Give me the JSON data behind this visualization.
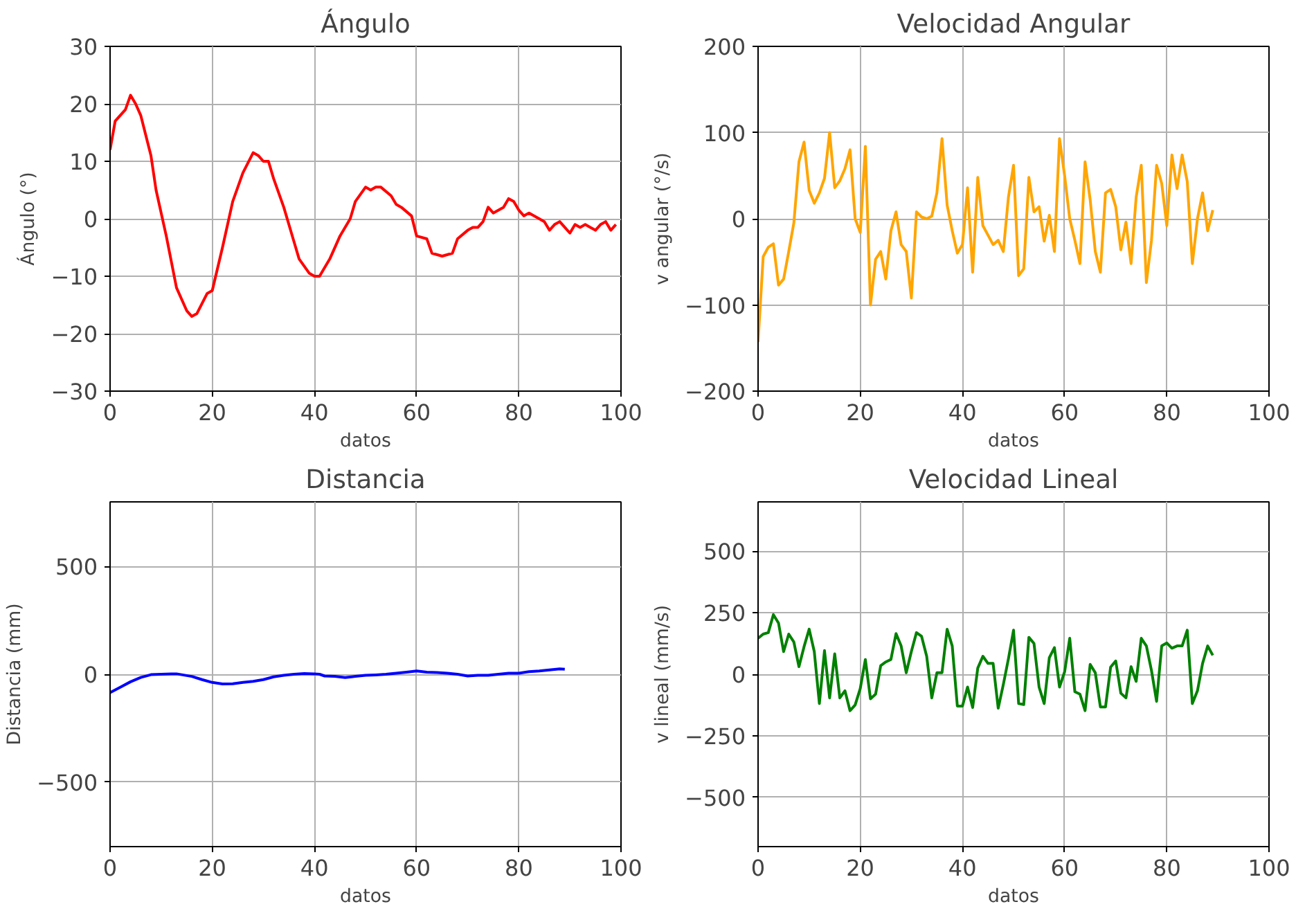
{
  "chart_data": [
    {
      "type": "line",
      "title": "Ángulo",
      "xlabel": "datos",
      "ylabel": "Ángulo (°)",
      "grid": true,
      "xlim": [
        0,
        100
      ],
      "ylim": [
        -30,
        30
      ],
      "xticks": [
        0,
        20,
        40,
        60,
        80,
        100
      ],
      "yticks": [
        {
          "value": -30,
          "label": "−30"
        },
        {
          "value": -20,
          "label": "−20"
        },
        {
          "value": -10,
          "label": "−10"
        },
        0,
        10,
        20,
        30
      ],
      "x": [
        0,
        1,
        3,
        4,
        5,
        6,
        8,
        9,
        11,
        13,
        15,
        16,
        17,
        19,
        20,
        22,
        24,
        26,
        28,
        29,
        30,
        31,
        32,
        34,
        36,
        37,
        39,
        40,
        41,
        43,
        45,
        47,
        48,
        50,
        51,
        52,
        53,
        55,
        56,
        57,
        59,
        60,
        62,
        63,
        65,
        67,
        68,
        70,
        71,
        72,
        73,
        74,
        75,
        77,
        78,
        79,
        80,
        81,
        82,
        84,
        85,
        86,
        87,
        88,
        89,
        90,
        91,
        92,
        93,
        94,
        95,
        96,
        97,
        98,
        99
      ],
      "series": [
        {
          "color": "#ff0000",
          "values": [
            12,
            17,
            19,
            21.5,
            20,
            18,
            11,
            5,
            -3,
            -12,
            -16,
            -17,
            -16.5,
            -13,
            -12.5,
            -5,
            3,
            8,
            11.5,
            11,
            10,
            10,
            7,
            2,
            -4,
            -7,
            -9.5,
            -10,
            -10,
            -7,
            -3,
            0,
            3,
            5.5,
            5,
            5.5,
            5.5,
            4,
            2.5,
            2,
            0.5,
            -3,
            -3.5,
            -6,
            -6.5,
            -6,
            -3.5,
            -2,
            -1.5,
            -1.5,
            -0.5,
            2,
            1,
            2,
            3.5,
            3,
            1.5,
            0.5,
            1,
            0,
            -0.5,
            -2,
            -1,
            -0.5,
            -1.5,
            -2.5,
            -1,
            -1.5,
            -1,
            -1.5,
            -2,
            -1,
            -0.5,
            -2,
            -1
          ]
        }
      ]
    },
    {
      "type": "line",
      "title": "Velocidad Angular",
      "xlabel": "datos",
      "ylabel": "v angular (°/s)",
      "grid": true,
      "xlim": [
        0,
        100
      ],
      "ylim": [
        -200,
        200
      ],
      "xticks": [
        0,
        20,
        40,
        60,
        80,
        100
      ],
      "yticks": [
        {
          "value": -200,
          "label": "−200"
        },
        {
          "value": -100,
          "label": "−100"
        },
        0,
        100,
        200
      ],
      "x": [
        0,
        1,
        2,
        3,
        4,
        5,
        6,
        7,
        8,
        9,
        10,
        11,
        12,
        13,
        14,
        15,
        16,
        17,
        18,
        19,
        20,
        21,
        22,
        23,
        24,
        25,
        26,
        27,
        28,
        29,
        30,
        31,
        32,
        33,
        34,
        35,
        36,
        37,
        38,
        39,
        40,
        41,
        42,
        43,
        44,
        45,
        46,
        47,
        48,
        49,
        50,
        51,
        52,
        53,
        54,
        55,
        56,
        57,
        58,
        59,
        60,
        61,
        62,
        63,
        64,
        65,
        66,
        67,
        68,
        69,
        70,
        71,
        72,
        73,
        74,
        75,
        76,
        77,
        78,
        79,
        80,
        81,
        82,
        83,
        84,
        85,
        86,
        87,
        88,
        89
      ],
      "series": [
        {
          "color": "#ffa500",
          "values": [
            -143,
            -44,
            -33,
            -29,
            -77,
            -70,
            -38,
            -5,
            66,
            89,
            33,
            18,
            30,
            47,
            100,
            36,
            44,
            58,
            80,
            0,
            -16,
            84,
            -100,
            -47,
            -38,
            -70,
            -14,
            8,
            -30,
            -38,
            -92,
            8,
            2,
            0,
            3,
            30,
            93,
            16,
            -14,
            -40,
            -30,
            36,
            -62,
            48,
            -8,
            -19,
            -30,
            -25,
            -38,
            25,
            62,
            -66,
            -58,
            48,
            8,
            14,
            -26,
            4,
            -38,
            93,
            50,
            0,
            -25,
            -52,
            66,
            22,
            -38,
            -62,
            30,
            34,
            14,
            -36,
            -4,
            -52,
            25,
            62,
            -74,
            -25,
            62,
            41,
            -8,
            74,
            35,
            74,
            43,
            -52,
            0,
            30,
            -14,
            10
          ]
        }
      ]
    },
    {
      "type": "line",
      "title": "Distancia",
      "xlabel": "datos",
      "ylabel": "Distancia (mm)",
      "grid": true,
      "xlim": [
        0,
        100
      ],
      "ylim": [
        -800,
        800
      ],
      "xticks": [
        0,
        20,
        40,
        60,
        80,
        100
      ],
      "yticks": [
        {
          "value": -500,
          "label": "−500"
        },
        0,
        500
      ],
      "x": [
        0,
        2,
        4,
        6,
        8,
        10,
        12,
        13,
        14,
        16,
        18,
        20,
        22,
        24,
        26,
        28,
        30,
        32,
        34,
        36,
        38,
        40,
        41,
        42,
        44,
        46,
        48,
        50,
        52,
        54,
        56,
        58,
        60,
        62,
        64,
        66,
        68,
        70,
        72,
        74,
        76,
        78,
        80,
        82,
        84,
        86,
        88,
        89
      ],
      "series": [
        {
          "color": "#0000ff",
          "values": [
            -85,
            -60,
            -35,
            -15,
            -2,
            0,
            2,
            2,
            -2,
            -10,
            -25,
            -38,
            -45,
            -44,
            -38,
            -33,
            -25,
            -12,
            -5,
            0,
            3,
            2,
            0,
            -8,
            -10,
            -15,
            -10,
            -5,
            -3,
            0,
            5,
            10,
            15,
            10,
            8,
            5,
            0,
            -8,
            -5,
            -5,
            0,
            5,
            5,
            12,
            15,
            20,
            25,
            23
          ]
        }
      ]
    },
    {
      "type": "line",
      "title": "Velocidad Lineal",
      "xlabel": "datos",
      "ylabel": "v lineal (mm/s)",
      "grid": true,
      "xlim": [
        0,
        100
      ],
      "ylim": [
        -700,
        700
      ],
      "xticks": [
        0,
        20,
        40,
        60,
        80,
        100
      ],
      "yticks": [
        {
          "value": -500,
          "label": "−500"
        },
        {
          "value": -250,
          "label": "−250"
        },
        0,
        250,
        500
      ],
      "x": [
        0,
        1,
        2,
        3,
        4,
        5,
        6,
        7,
        8,
        9,
        10,
        11,
        12,
        13,
        14,
        15,
        16,
        17,
        18,
        19,
        20,
        21,
        22,
        23,
        24,
        25,
        26,
        27,
        28,
        29,
        30,
        31,
        32,
        33,
        34,
        35,
        36,
        37,
        38,
        39,
        40,
        41,
        42,
        43,
        44,
        45,
        46,
        47,
        48,
        49,
        50,
        51,
        52,
        53,
        54,
        55,
        56,
        57,
        58,
        59,
        60,
        61,
        62,
        63,
        64,
        65,
        66,
        67,
        68,
        69,
        70,
        71,
        72,
        73,
        74,
        75,
        76,
        77,
        78,
        79,
        80,
        81,
        82,
        83,
        84,
        85,
        86,
        87,
        88,
        89
      ],
      "series": [
        {
          "color": "#008000",
          "values": [
            146,
            163,
            169,
            242,
            208,
            92,
            163,
            131,
            31,
            112,
            183,
            92,
            -119,
            96,
            -96,
            83,
            -96,
            -67,
            -148,
            -125,
            -58,
            60,
            -100,
            -81,
            35,
            50,
            60,
            165,
            115,
            6,
            92,
            169,
            154,
            73,
            -96,
            6,
            6,
            183,
            115,
            -129,
            -129,
            -52,
            -135,
            25,
            73,
            44,
            44,
            -138,
            -42,
            63,
            179,
            -119,
            -123,
            150,
            125,
            -52,
            -119,
            67,
            108,
            -52,
            10,
            146,
            -71,
            -81,
            -148,
            40,
            6,
            -133,
            -133,
            29,
            54,
            -77,
            -96,
            31,
            -29,
            146,
            115,
            15,
            -110,
            115,
            127,
            106,
            115,
            115,
            179,
            -119,
            -67,
            44,
            115,
            77
          ]
        }
      ]
    }
  ]
}
